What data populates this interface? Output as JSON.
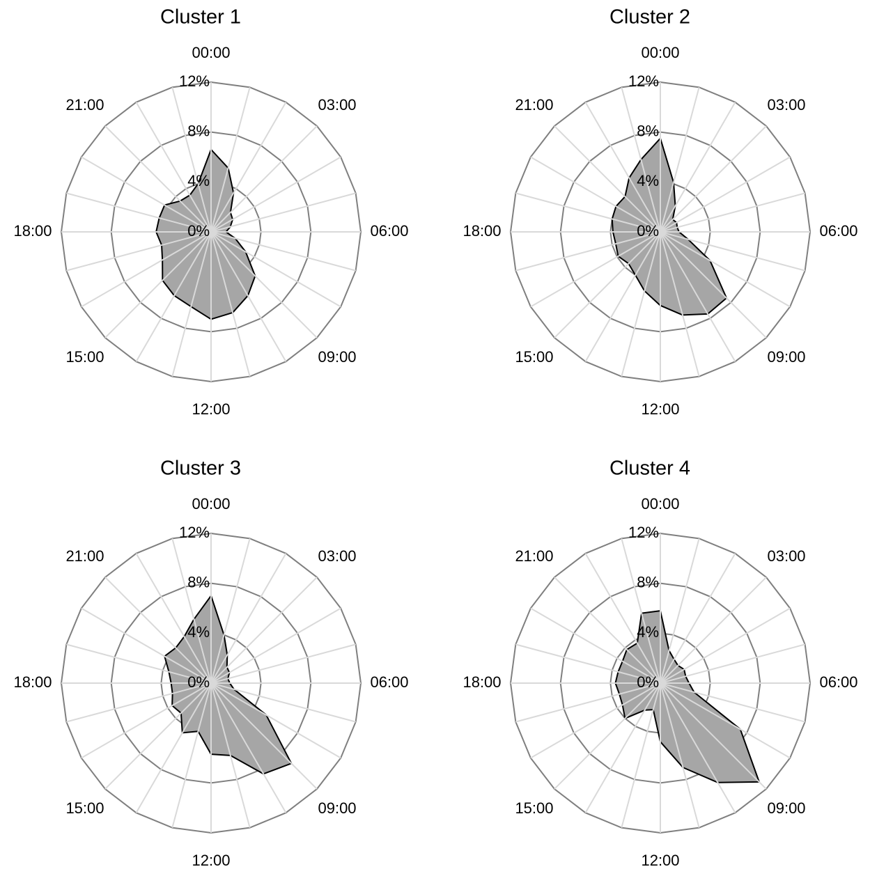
{
  "chart_data": [
    {
      "type": "radar",
      "title": "Cluster 1",
      "color": "#a6a6a6",
      "categories": [
        "00:00",
        null,
        null,
        "03:00",
        null,
        null,
        "06:00",
        null,
        null,
        "09:00",
        null,
        null,
        "12:00",
        null,
        null,
        "15:00",
        null,
        null,
        "18:00",
        null,
        null,
        "21:00",
        null,
        null
      ],
      "values": [
        6.6,
        5.3,
        3.6,
        2.2,
        2.0,
        1.6,
        1.2,
        2.0,
        3.2,
        5.0,
        5.9,
        6.7,
        7.0,
        6.2,
        5.9,
        5.5,
        4.5,
        4.1,
        4.4,
        4.3,
        4.3,
        3.5,
        3.4,
        4.0
      ],
      "ylim": [
        0,
        12
      ],
      "yticks": [
        {
          "value": 0,
          "label": "0%"
        },
        {
          "value": 4,
          "label": "4%"
        },
        {
          "value": 8,
          "label": "8%"
        },
        {
          "value": 12,
          "label": "12%"
        }
      ]
    },
    {
      "type": "radar",
      "title": "Cluster 2",
      "color": "#a6a6a6",
      "categories": [
        "00:00",
        null,
        null,
        "03:00",
        null,
        null,
        "06:00",
        null,
        null,
        "09:00",
        null,
        null,
        "12:00",
        null,
        null,
        "15:00",
        null,
        null,
        "18:00",
        null,
        null,
        "21:00",
        null,
        null
      ],
      "values": [
        7.5,
        4.1,
        2.4,
        1.4,
        1.5,
        1.4,
        1.5,
        2.3,
        4.6,
        7.5,
        7.6,
        6.9,
        5.9,
        4.9,
        4.0,
        3.6,
        3.9,
        3.7,
        3.8,
        4.0,
        4.1,
        4.0,
        5.0,
        6.0
      ],
      "ylim": [
        0,
        12
      ],
      "yticks": [
        {
          "value": 0,
          "label": "0%"
        },
        {
          "value": 4,
          "label": "4%"
        },
        {
          "value": 8,
          "label": "8%"
        },
        {
          "value": 12,
          "label": "12%"
        }
      ]
    },
    {
      "type": "radar",
      "title": "Cluster 3",
      "color": "#a6a6a6",
      "categories": [
        "00:00",
        null,
        null,
        "03:00",
        null,
        null,
        "06:00",
        null,
        null,
        "09:00",
        null,
        null,
        "12:00",
        null,
        null,
        "15:00",
        null,
        null,
        "18:00",
        null,
        null,
        "21:00",
        null,
        null
      ],
      "values": [
        7.0,
        4.0,
        2.6,
        1.8,
        1.7,
        1.4,
        1.5,
        1.9,
        5.1,
        9.1,
        8.4,
        6.0,
        5.7,
        4.0,
        4.6,
        3.4,
        3.6,
        3.2,
        3.2,
        3.5,
        4.3,
        4.0,
        4.3,
        5.3
      ],
      "ylim": [
        0,
        12
      ],
      "yticks": [
        {
          "value": 0,
          "label": "0%"
        },
        {
          "value": 4,
          "label": "4%"
        },
        {
          "value": 8,
          "label": "8%"
        },
        {
          "value": 12,
          "label": "12%"
        }
      ]
    },
    {
      "type": "radar",
      "title": "Cluster 4",
      "color": "#a6a6a6",
      "categories": [
        "00:00",
        null,
        null,
        "03:00",
        null,
        null,
        "06:00",
        null,
        null,
        "09:00",
        null,
        null,
        "12:00",
        null,
        null,
        "15:00",
        null,
        null,
        "18:00",
        null,
        null,
        "21:00",
        null,
        null
      ],
      "values": [
        5.8,
        2.7,
        2.2,
        2.0,
        2.2,
        2.1,
        2.3,
        2.8,
        7.4,
        11.2,
        9.2,
        7.0,
        4.7,
        2.2,
        2.5,
        4.0,
        3.5,
        3.4,
        3.6,
        3.5,
        3.5,
        3.8,
        3.7,
        5.8
      ],
      "ylim": [
        0,
        12
      ],
      "yticks": [
        {
          "value": 0,
          "label": "0%"
        },
        {
          "value": 4,
          "label": "4%"
        },
        {
          "value": 8,
          "label": "8%"
        },
        {
          "value": 12,
          "label": "12%"
        }
      ]
    }
  ]
}
